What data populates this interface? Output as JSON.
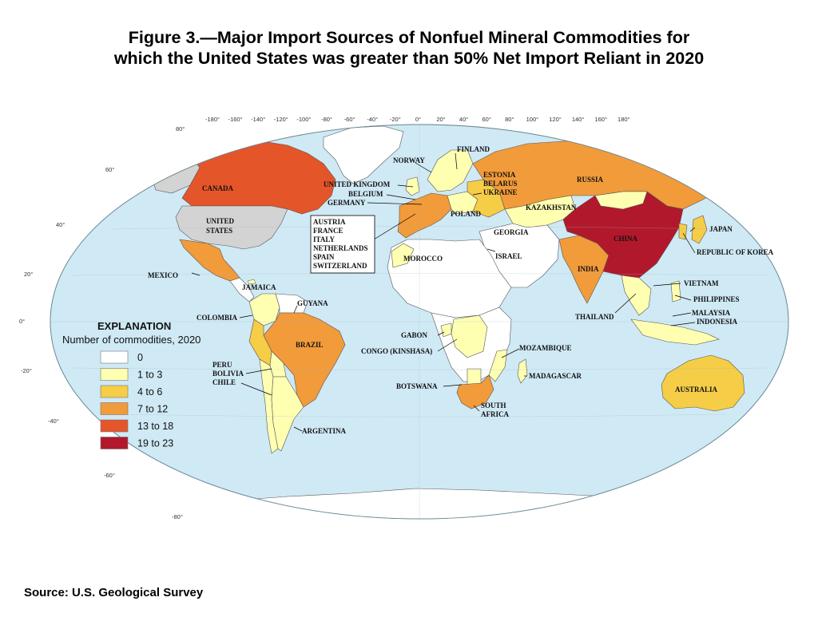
{
  "title": {
    "line1": "Figure 3.—Major Import Sources of Nonfuel Mineral Commodities for",
    "line2": "which the United States was greater than 50% Net Import Reliant in 2020"
  },
  "source": "Source: U.S. Geological Survey",
  "colors": {
    "ocean": "#cfe9f5",
    "land_zero": "#ffffff",
    "us": "#d3d3d3",
    "c1": "#ffffb2",
    "c2": "#f5cd47",
    "c3": "#f29b3a",
    "c4": "#e4552a",
    "c5": "#b2182b"
  },
  "legend": {
    "title": "EXPLANATION",
    "subtitle": "Number of commodities, 2020",
    "items": [
      {
        "label": "0",
        "color": "#ffffff"
      },
      {
        "label": "1 to 3",
        "color": "#ffffb2"
      },
      {
        "label": "4 to 6",
        "color": "#f5cd47"
      },
      {
        "label": "7 to 12",
        "color": "#f29b3a"
      },
      {
        "label": "13 to 18",
        "color": "#e4552a"
      },
      {
        "label": "19 to 23",
        "color": "#b2182b"
      }
    ]
  },
  "longitude_ticks": [
    "-180°",
    "-160°",
    "-140°",
    "-120°",
    "-100°",
    "-80°",
    "-60°",
    "-40°",
    "-20°",
    "0°",
    "20°",
    "40°",
    "60°",
    "80°",
    "100°",
    "120°",
    "140°",
    "160°",
    "180°"
  ],
  "latitude_ticks": [
    "80°",
    "60°",
    "40°",
    "20°",
    "0°",
    "-20°",
    "-40°",
    "-60°",
    "-80°"
  ],
  "countries": {
    "canada": "CANADA",
    "united_states_1": "UNITED",
    "united_states_2": "STATES",
    "mexico": "MEXICO",
    "jamaica": "JAMAICA",
    "colombia": "COLOMBIA",
    "guyana": "GUYANA",
    "brazil": "BRAZIL",
    "peru": "PERU",
    "bolivia": "BOLIVIA",
    "chile": "CHILE",
    "argentina": "ARGENTINA",
    "finland": "FINLAND",
    "norway": "NORWAY",
    "united_kingdom": "UNITED KINGDOM",
    "belgium": "BELGIUM",
    "germany": "GERMANY",
    "estonia": "ESTONIA",
    "belarus": "BELARUS",
    "ukraine": "UKRAINE",
    "poland": "POLAND",
    "russia": "RUSSIA",
    "kazakhstan": "KAZAKHSTAN",
    "georgia": "GEORGIA",
    "israel": "ISRAEL",
    "morocco": "MOROCCO",
    "china": "CHINA",
    "japan": "JAPAN",
    "korea": "REPUBLIC OF KOREA",
    "india": "INDIA",
    "vietnam": "VIETNAM",
    "philippines": "PHILIPPINES",
    "malaysia": "MALAYSIA",
    "indonesia": "INDONESIA",
    "thailand": "THAILAND",
    "gabon": "GABON",
    "congo": "CONGO (KINSHASA)",
    "mozambique": "MOZAMBIQUE",
    "madagascar": "MADAGASCAR",
    "botswana": "BOTSWANA",
    "south_africa_1": "SOUTH",
    "south_africa_2": "AFRICA",
    "australia": "AUSTRALIA"
  },
  "europe_box": [
    "AUSTRIA",
    "FRANCE",
    "ITALY",
    "NETHERLANDS",
    "SPAIN",
    "SWITZERLAND"
  ]
}
